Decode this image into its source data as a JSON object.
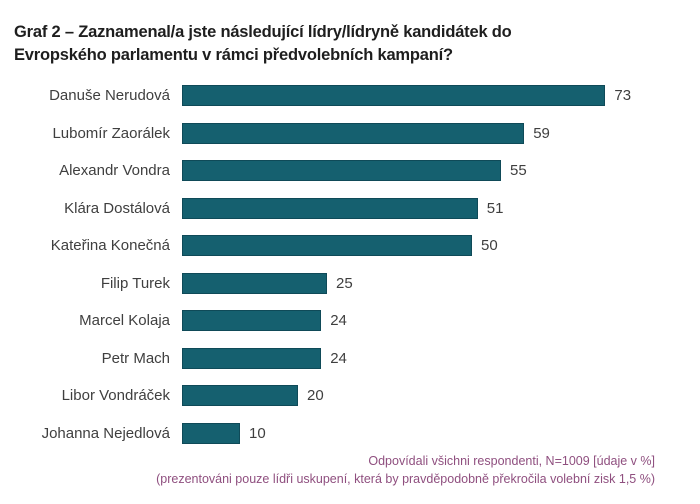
{
  "title": {
    "line1": "Graf 2 – Zaznamenal/a jste následující lídry/lídryně kandidátek do",
    "line2": "Evropského parlamentu v rámci předvolebních kampaní?"
  },
  "chart_data": {
    "type": "bar",
    "orientation": "horizontal",
    "title": "Graf 2 – Zaznamenal/a jste následující lídry/lídryně kandidátek do Evropského parlamentu v rámci předvolebních kampaní?",
    "categories": [
      "Danuše Nerudová",
      "Lubomír Zaorálek",
      "Alexandr Vondra",
      "Klára Dostálová",
      "Kateřina Konečná",
      "Filip Turek",
      "Marcel Kolaja",
      "Petr Mach",
      "Libor Vondráček",
      "Johanna Nejedlová"
    ],
    "values": [
      73,
      59,
      55,
      51,
      50,
      25,
      24,
      24,
      20,
      10
    ],
    "unit": "%",
    "xlim": [
      0,
      80
    ],
    "grid": false,
    "legend": false,
    "data_labels": true,
    "bar_color": "#15606F",
    "annotations": [
      "Odpovídali všichni respondenti, N=1009 [údaje v %]",
      "(prezentováni pouze lídři uskupení, která by pravděpodobně překročila volební zisk 1,5 %)"
    ]
  },
  "footer": {
    "line1": "Odpovídali všichni respondenti, N=1009 [údaje v %]",
    "line2": "(prezentováni pouze lídři uskupení, která by pravděpodobně překročila volební zisk 1,5 %)"
  },
  "colors": {
    "bar": "#15606F",
    "bar_edge": "#0f4a58",
    "title_text": "#1e1e1e",
    "label_text": "#3f3f3f",
    "footnote_text": "#8f4f7f",
    "background": "#ffffff"
  }
}
